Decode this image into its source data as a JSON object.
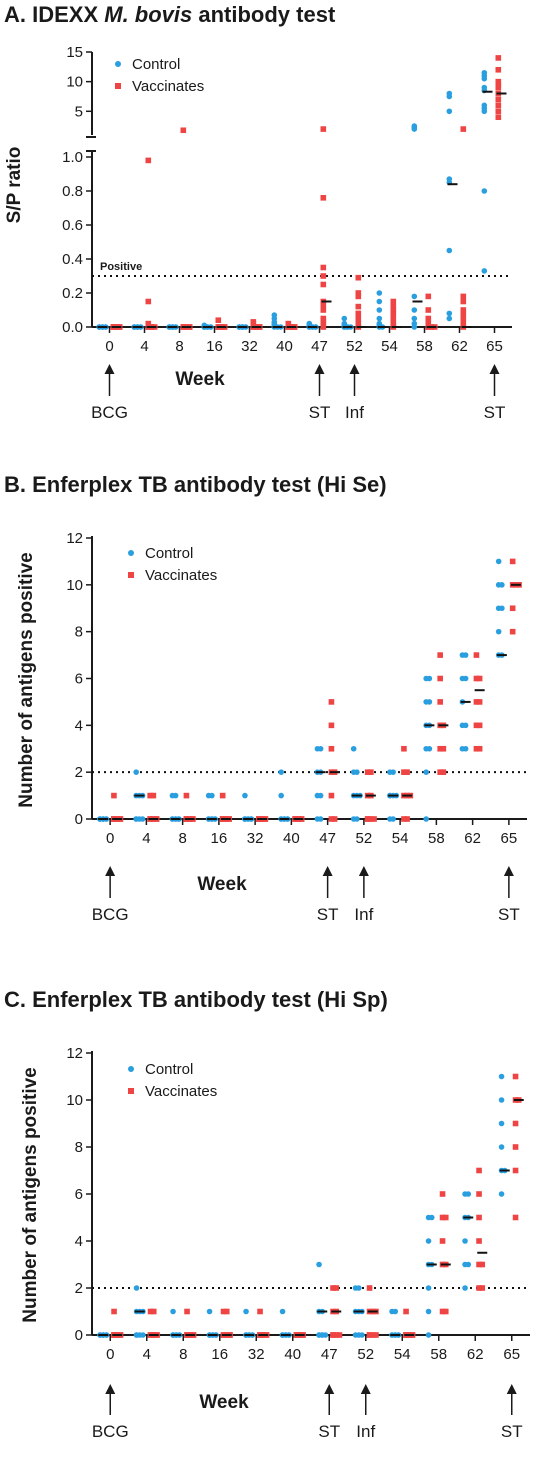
{
  "panels": [
    {
      "title_prefix": "A. IDEXX ",
      "title_italic": "M. bovis",
      "title_suffix": " antibody test",
      "ylabel": "S/P ratio",
      "xlabel": "Week",
      "weeks": [
        "0",
        "4",
        "8",
        "16",
        "32",
        "40",
        "47",
        "52",
        "54",
        "58",
        "62",
        "65"
      ],
      "legend": [
        "Control",
        "Vaccinates"
      ],
      "events": [
        {
          "week": "0",
          "label": "BCG"
        },
        {
          "week": "47",
          "label": "ST"
        },
        {
          "week": "52",
          "label": "Inf"
        },
        {
          "week": "65",
          "label": "ST"
        }
      ],
      "threshold": {
        "value": 0.3,
        "label": "Positive"
      },
      "lower_ticks": [
        "0.0",
        "0.2",
        "0.4",
        "0.6",
        "0.8",
        "1.0"
      ],
      "upper_ticks": [
        "5",
        "10",
        "15"
      ]
    },
    {
      "title": "B. Enferplex TB antibody test (Hi Se)",
      "ylabel": "Number of antigens positive",
      "xlabel": "Week",
      "weeks": [
        "0",
        "4",
        "8",
        "16",
        "32",
        "40",
        "47",
        "52",
        "54",
        "58",
        "62",
        "65"
      ],
      "legend": [
        "Control",
        "Vaccinates"
      ],
      "events": [
        {
          "week": "0",
          "label": "BCG"
        },
        {
          "week": "47",
          "label": "ST"
        },
        {
          "week": "52",
          "label": "Inf"
        },
        {
          "week": "65",
          "label": "ST"
        }
      ],
      "threshold": {
        "value": 2
      },
      "yticks": [
        "0",
        "2",
        "4",
        "6",
        "8",
        "10",
        "12"
      ]
    },
    {
      "title": "C. Enferplex TB antibody test (Hi Sp)",
      "ylabel": "Number of antigens positive",
      "xlabel": "Week",
      "weeks": [
        "0",
        "4",
        "8",
        "16",
        "32",
        "40",
        "47",
        "52",
        "54",
        "58",
        "62",
        "65"
      ],
      "legend": [
        "Control",
        "Vaccinates"
      ],
      "events": [
        {
          "week": "0",
          "label": "BCG"
        },
        {
          "week": "47",
          "label": "ST"
        },
        {
          "week": "52",
          "label": "Inf"
        },
        {
          "week": "65",
          "label": "ST"
        }
      ],
      "threshold": {
        "value": 2
      },
      "yticks": [
        "0",
        "2",
        "4",
        "6",
        "8",
        "10",
        "12"
      ]
    }
  ],
  "colors": {
    "control": "#2a9fe0",
    "vaccinates": "#ee4444",
    "median": "#111111",
    "axis": "#1a1a1a"
  },
  "chart_data": [
    {
      "type": "scatter",
      "title": "A. IDEXX M. bovis antibody test",
      "xlabel": "Week",
      "ylabel": "S/P ratio",
      "categories": [
        "0",
        "4",
        "8",
        "16",
        "32",
        "40",
        "47",
        "52",
        "54",
        "58",
        "62",
        "65"
      ],
      "y_axis": "broken: 0-1.0 (lower segment), 1-15 (upper segment)",
      "threshold": 0.3,
      "series": [
        {
          "name": "Control",
          "values": [
            [
              0,
              0,
              0,
              0,
              0,
              0,
              0,
              0
            ],
            [
              0,
              0,
              0,
              0,
              0,
              0,
              0,
              0
            ],
            [
              0,
              0,
              0,
              0,
              0,
              0,
              0,
              0
            ],
            [
              0,
              0,
              0,
              0,
              0,
              0.01,
              0,
              0
            ],
            [
              0,
              0,
              0,
              0,
              0,
              0,
              0,
              0
            ],
            [
              0.07,
              0.05,
              0.03,
              0.02,
              0.01,
              0,
              0,
              0
            ],
            [
              0.02,
              0.01,
              0,
              0,
              0,
              0,
              0,
              0
            ],
            [
              0.05,
              0.02,
              0.01,
              0,
              0,
              0,
              0,
              0
            ],
            [
              0.2,
              0.15,
              0.1,
              0.05,
              0.02,
              0.01,
              0,
              0
            ],
            [
              2.5,
              2.2,
              2.0,
              0.18,
              0.1,
              0.05,
              0.02,
              0
            ],
            [
              8.0,
              7.5,
              5.0,
              0.87,
              0.85,
              0.45,
              0.08,
              0.05
            ],
            [
              11.5,
              11.0,
              10.5,
              9.0,
              8.5,
              6.0,
              5.5,
              5.0,
              0.8,
              0.33
            ]
          ]
        },
        {
          "name": "Vaccinates",
          "values": [
            [
              0,
              0,
              0,
              0,
              0,
              0,
              0,
              0
            ],
            [
              0.98,
              0.15,
              0.02,
              0,
              0,
              0,
              0,
              0
            ],
            [
              1.8,
              0,
              0,
              0,
              0,
              0,
              0,
              0
            ],
            [
              0.04,
              0,
              0,
              0,
              0,
              0,
              0,
              0
            ],
            [
              0.03,
              0.02,
              0,
              0,
              0,
              0,
              0,
              0
            ],
            [
              0.02,
              0.01,
              0,
              0,
              0,
              0,
              0,
              0
            ],
            [
              2.0,
              0.76,
              0.35,
              0.3,
              0.25,
              0.15,
              0.12,
              0.1,
              0.05,
              0.03,
              0.02,
              0
            ],
            [
              0.29,
              0.2,
              0.18,
              0.12,
              0.08,
              0.05,
              0.02,
              0
            ],
            [
              0.15,
              0.12,
              0.1,
              0.08,
              0.05,
              0.02,
              0.01,
              0
            ],
            [
              0.18,
              0.1,
              0.05,
              0.02,
              0,
              0,
              0,
              0
            ],
            [
              2.0,
              0.18,
              0.15,
              0.1,
              0.08,
              0.05,
              0.02,
              0
            ],
            [
              14.0,
              12.0,
              10.0,
              9.5,
              9.0,
              8.0,
              7.0,
              6.0,
              5.0,
              4.0
            ]
          ]
        }
      ],
      "medians": {
        "Control": [
          0,
          0,
          0,
          0,
          0,
          0,
          0,
          0,
          0,
          0.15,
          0.84,
          8.3
        ],
        "Vaccinates": [
          0,
          0,
          0,
          0,
          0,
          0,
          0.15,
          0,
          0,
          0,
          0,
          8.0
        ]
      }
    },
    {
      "type": "scatter",
      "title": "B. Enferplex TB antibody test (Hi Se)",
      "xlabel": "Week",
      "ylabel": "Number of antigens positive",
      "categories": [
        "0",
        "4",
        "8",
        "16",
        "32",
        "40",
        "47",
        "52",
        "54",
        "58",
        "62",
        "65"
      ],
      "ylim": [
        0,
        12
      ],
      "threshold": 2,
      "series": [
        {
          "name": "Control",
          "values": [
            [
              0,
              0,
              0,
              0,
              0,
              0,
              0,
              0
            ],
            [
              2,
              1,
              1,
              1,
              0,
              0,
              0,
              0
            ],
            [
              1,
              1,
              0,
              0,
              0,
              0,
              0,
              0
            ],
            [
              1,
              1,
              0,
              0,
              0,
              0,
              0,
              0
            ],
            [
              1,
              0,
              0,
              0,
              0,
              0,
              0,
              0
            ],
            [
              2,
              1,
              0,
              0,
              0,
              0,
              0,
              0
            ],
            [
              3,
              3,
              2,
              2,
              1,
              1,
              0,
              0
            ],
            [
              3,
              2,
              2,
              1,
              1,
              1,
              0,
              0
            ],
            [
              2,
              2,
              1,
              1,
              1,
              1,
              0,
              0
            ],
            [
              6,
              6,
              5,
              5,
              4,
              4,
              3,
              3,
              2,
              0
            ],
            [
              7,
              7,
              6,
              6,
              5,
              4,
              4,
              3,
              3
            ],
            [
              11,
              10,
              10,
              9,
              9,
              8,
              7,
              7
            ]
          ]
        },
        {
          "name": "Vaccinates",
          "values": [
            [
              1,
              0,
              0,
              0,
              0,
              0,
              0,
              0
            ],
            [
              1,
              1,
              0,
              0,
              0,
              0,
              0,
              0
            ],
            [
              1,
              0,
              0,
              0,
              0,
              0,
              0,
              0
            ],
            [
              1,
              0,
              0,
              0,
              0,
              0,
              0,
              0
            ],
            [
              0,
              0,
              0,
              0,
              0,
              0,
              0,
              0
            ],
            [
              0,
              0,
              0,
              0,
              0,
              0,
              0,
              0
            ],
            [
              5,
              4,
              3,
              2,
              2,
              1,
              0,
              0
            ],
            [
              2,
              2,
              1,
              1,
              0,
              0,
              0,
              0
            ],
            [
              3,
              2,
              2,
              1,
              1,
              1,
              0,
              0
            ],
            [
              7,
              6,
              5,
              4,
              4,
              3,
              3,
              2,
              2
            ],
            [
              7,
              6,
              6,
              5,
              5,
              4,
              4,
              3,
              3
            ],
            [
              11,
              10,
              10,
              10,
              9,
              8
            ]
          ]
        }
      ],
      "medians": {
        "Control": [
          0,
          1,
          0,
          0,
          0,
          0,
          2,
          1,
          1,
          4,
          5,
          7
        ],
        "Vaccinates": [
          0,
          0,
          0,
          0,
          0,
          0,
          2,
          1,
          1,
          4,
          5.5,
          10
        ]
      }
    },
    {
      "type": "scatter",
      "title": "C. Enferplex TB antibody test (Hi Sp)",
      "xlabel": "Week",
      "ylabel": "Number of antigens positive",
      "categories": [
        "0",
        "4",
        "8",
        "16",
        "32",
        "40",
        "47",
        "52",
        "54",
        "58",
        "62",
        "65"
      ],
      "ylim": [
        0,
        12
      ],
      "threshold": 2,
      "series": [
        {
          "name": "Control",
          "values": [
            [
              0,
              0,
              0,
              0,
              0,
              0,
              0,
              0
            ],
            [
              2,
              1,
              1,
              1,
              0,
              0,
              0,
              0
            ],
            [
              1,
              0,
              0,
              0,
              0,
              0,
              0,
              0
            ],
            [
              1,
              0,
              0,
              0,
              0,
              0,
              0,
              0
            ],
            [
              1,
              0,
              0,
              0,
              0,
              0,
              0,
              0
            ],
            [
              1,
              0,
              0,
              0,
              0,
              0,
              0,
              0
            ],
            [
              3,
              1,
              1,
              0,
              0,
              0,
              0,
              0
            ],
            [
              2,
              2,
              1,
              1,
              1,
              0,
              0,
              0
            ],
            [
              1,
              1,
              0,
              0,
              0,
              0,
              0,
              0
            ],
            [
              5,
              5,
              4,
              3,
              3,
              2,
              1,
              0
            ],
            [
              6,
              6,
              5,
              5,
              4,
              3,
              3,
              2
            ],
            [
              11,
              10,
              9,
              8,
              7,
              7,
              6
            ]
          ]
        },
        {
          "name": "Vaccinates",
          "values": [
            [
              1,
              0,
              0,
              0,
              0,
              0,
              0,
              0
            ],
            [
              1,
              1,
              0,
              0,
              0,
              0,
              0,
              0
            ],
            [
              1,
              0,
              0,
              0,
              0,
              0,
              0,
              0
            ],
            [
              1,
              1,
              0,
              0,
              0,
              0,
              0,
              0
            ],
            [
              1,
              0,
              0,
              0,
              0,
              0,
              0,
              0
            ],
            [
              0,
              0,
              0,
              0,
              0,
              0,
              0,
              0
            ],
            [
              2,
              2,
              1,
              1,
              0,
              0,
              0,
              0
            ],
            [
              2,
              1,
              1,
              1,
              0,
              0,
              0,
              0
            ],
            [
              1,
              0,
              0,
              0,
              0,
              0,
              0,
              0
            ],
            [
              6,
              5,
              5,
              4,
              3,
              3,
              1,
              1
            ],
            [
              7,
              6,
              5,
              4,
              3,
              3,
              2,
              2
            ],
            [
              11,
              10,
              10,
              9,
              8,
              7,
              5
            ]
          ]
        }
      ],
      "medians": {
        "Control": [
          0,
          1,
          0,
          0,
          0,
          0,
          1,
          1,
          0,
          3,
          5,
          7
        ],
        "Vaccinates": [
          0,
          0,
          0,
          0,
          0,
          0,
          1,
          1,
          0,
          3,
          3.5,
          10
        ]
      }
    }
  ]
}
